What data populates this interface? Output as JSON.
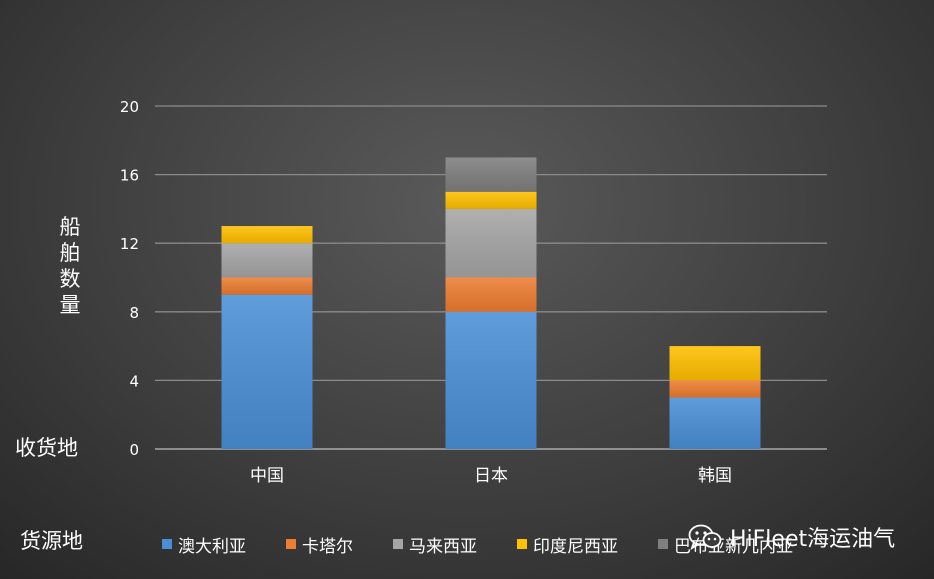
{
  "chart_data": {
    "type": "bar",
    "stacked": true,
    "categories": [
      "中国",
      "日本",
      "韩国"
    ],
    "series": [
      {
        "name": "澳大利亚",
        "values": [
          9,
          8,
          3
        ],
        "color": "#4a8fd6"
      },
      {
        "name": "卡塔尔",
        "values": [
          1,
          2,
          1
        ],
        "color": "#ed7d31"
      },
      {
        "name": "马来西亚",
        "values": [
          2,
          4,
          0
        ],
        "color": "#a5a5a5"
      },
      {
        "name": "印度尼西亚",
        "values": [
          1,
          1,
          2
        ],
        "color": "#ffc000"
      },
      {
        "name": "巴布亚新几内亚",
        "values": [
          0,
          2,
          0
        ],
        "color": "#7f7f7f"
      }
    ],
    "ylabel": "船舶数量",
    "xlabel": "收货地",
    "legend_title": "货源地",
    "ylim": [
      0,
      20
    ],
    "yticks": [
      0,
      4,
      8,
      12,
      16,
      20
    ],
    "grid": true,
    "legend": "bottom"
  },
  "watermark": {
    "text": "HiFleet海运油气",
    "icon": "wechat-icon"
  }
}
